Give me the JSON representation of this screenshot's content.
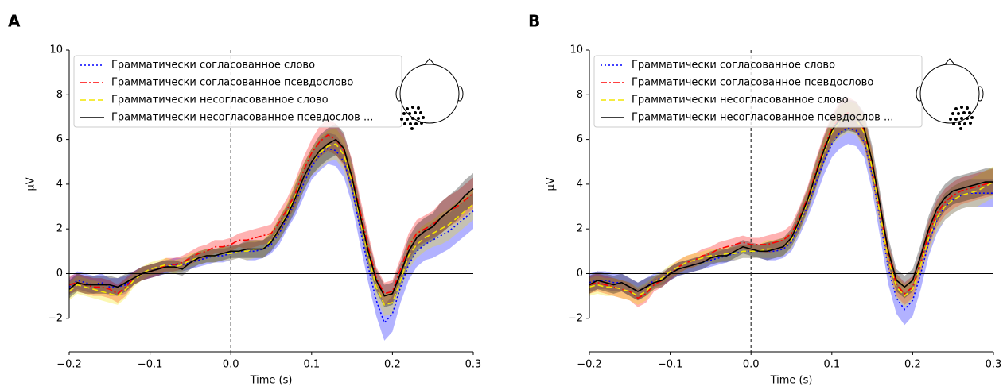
{
  "chart_data": [
    {
      "type": "line",
      "panel_label": "A",
      "x_label": "Time (s)",
      "y_label": "µV",
      "xlim": [
        -0.2,
        0.3
      ],
      "ylim": [
        -3.5,
        10
      ],
      "xticks": [
        {
          "value": -0.2,
          "label": "−0.2"
        },
        {
          "value": -0.1,
          "label": "−0.1"
        },
        {
          "value": 0,
          "label": "0.0"
        },
        {
          "value": 0.1,
          "label": "0.1"
        },
        {
          "value": 0.2,
          "label": "0.2"
        },
        {
          "value": 0.3,
          "label": "0.3"
        }
      ],
      "yticks": [
        {
          "value": -2,
          "label": "−2"
        },
        0,
        2,
        4,
        6,
        8,
        10
      ],
      "hline": 0,
      "vline": 0,
      "legend": "upper left",
      "x": [
        -0.2,
        -0.19,
        -0.18,
        -0.17,
        -0.16,
        -0.15,
        -0.14,
        -0.13,
        -0.12,
        -0.11,
        -0.1,
        -0.09,
        -0.08,
        -0.07,
        -0.06,
        -0.05,
        -0.04,
        -0.03,
        -0.02,
        -0.01,
        0,
        0.01,
        0.02,
        0.03,
        0.04,
        0.05,
        0.06,
        0.07,
        0.08,
        0.09,
        0.1,
        0.11,
        0.12,
        0.13,
        0.14,
        0.15,
        0.16,
        0.17,
        0.18,
        0.19,
        0.2,
        0.21,
        0.22,
        0.23,
        0.24,
        0.25,
        0.26,
        0.27,
        0.28,
        0.29,
        0.3
      ],
      "series": [
        {
          "name": "Грамматически согласованное слово",
          "color": "#0000ff",
          "linestyle": "dotted",
          "values": [
            -0.6,
            -0.3,
            -0.4,
            -0.5,
            -0.4,
            -0.6,
            -0.6,
            -0.5,
            -0.2,
            0.0,
            0.1,
            0.2,
            0.3,
            0.4,
            0.4,
            0.5,
            0.6,
            0.7,
            0.8,
            0.8,
            0.9,
            1.0,
            1.0,
            1.0,
            1.1,
            1.3,
            1.8,
            2.5,
            3.2,
            4.0,
            4.8,
            5.3,
            5.6,
            5.5,
            5.0,
            3.8,
            2.0,
            0.3,
            -1.2,
            -2.2,
            -1.8,
            -0.6,
            0.4,
            1.0,
            1.3,
            1.5,
            1.7,
            1.9,
            2.2,
            2.5,
            2.8
          ],
          "error": [
            0.4,
            0.4,
            0.4,
            0.4,
            0.4,
            0.4,
            0.4,
            0.4,
            0.3,
            0.3,
            0.3,
            0.3,
            0.3,
            0.3,
            0.3,
            0.3,
            0.3,
            0.3,
            0.3,
            0.3,
            0.3,
            0.3,
            0.4,
            0.4,
            0.4,
            0.4,
            0.5,
            0.5,
            0.6,
            0.6,
            0.6,
            0.7,
            0.7,
            0.7,
            0.7,
            0.7,
            0.7,
            0.7,
            0.7,
            0.8,
            0.8,
            0.7,
            0.7,
            0.7,
            0.7,
            0.8,
            0.8,
            0.8,
            0.8,
            0.8,
            0.8
          ]
        },
        {
          "name": "Грамматически согласованное псевдослово",
          "color": "#ff0000",
          "linestyle": "dashdot",
          "values": [
            -0.5,
            -0.4,
            -0.5,
            -0.6,
            -0.6,
            -0.7,
            -0.9,
            -0.6,
            -0.2,
            0.0,
            0.1,
            0.2,
            0.4,
            0.4,
            0.5,
            0.7,
            0.9,
            1.0,
            1.2,
            1.2,
            1.3,
            1.5,
            1.5,
            1.6,
            1.7,
            1.8,
            2.3,
            2.9,
            3.6,
            4.6,
            5.4,
            5.9,
            6.2,
            6.0,
            5.5,
            4.4,
            2.8,
            1.2,
            -0.2,
            -0.9,
            -0.8,
            0.2,
            1.2,
            1.8,
            2.0,
            2.2,
            2.5,
            2.8,
            3.0,
            3.3,
            3.6
          ],
          "error": [
            0.4,
            0.4,
            0.4,
            0.4,
            0.4,
            0.4,
            0.4,
            0.4,
            0.3,
            0.3,
            0.3,
            0.3,
            0.3,
            0.3,
            0.3,
            0.3,
            0.3,
            0.3,
            0.3,
            0.3,
            0.3,
            0.3,
            0.4,
            0.4,
            0.4,
            0.4,
            0.5,
            0.5,
            0.6,
            0.6,
            0.6,
            0.7,
            0.7,
            0.7,
            0.7,
            0.7,
            0.6,
            0.6,
            0.5,
            0.5,
            0.5,
            0.5,
            0.6,
            0.6,
            0.6,
            0.6,
            0.7,
            0.7,
            0.7,
            0.7,
            0.7
          ]
        },
        {
          "name": "Грамматически несогласованное слово",
          "color": "#f2e600",
          "linestyle": "dashed",
          "values": [
            -0.8,
            -0.5,
            -0.6,
            -0.7,
            -0.8,
            -0.9,
            -1.0,
            -0.7,
            -0.3,
            0.0,
            0.2,
            0.3,
            0.4,
            0.3,
            0.4,
            0.6,
            0.7,
            0.8,
            0.8,
            0.9,
            0.9,
            1.0,
            1.0,
            1.1,
            1.1,
            1.5,
            2.0,
            2.7,
            3.5,
            4.3,
            5.0,
            5.4,
            5.7,
            5.8,
            5.3,
            4.1,
            2.4,
            0.8,
            -0.6,
            -1.4,
            -1.3,
            -0.3,
            0.8,
            1.3,
            1.6,
            1.8,
            2.0,
            2.2,
            2.5,
            2.8,
            3.1
          ],
          "error": [
            0.4,
            0.4,
            0.4,
            0.4,
            0.4,
            0.4,
            0.4,
            0.4,
            0.3,
            0.3,
            0.3,
            0.3,
            0.3,
            0.3,
            0.3,
            0.3,
            0.3,
            0.3,
            0.3,
            0.3,
            0.3,
            0.3,
            0.4,
            0.4,
            0.4,
            0.4,
            0.5,
            0.5,
            0.6,
            0.6,
            0.6,
            0.7,
            0.7,
            0.7,
            0.7,
            0.7,
            0.6,
            0.6,
            0.5,
            0.5,
            0.5,
            0.5,
            0.6,
            0.6,
            0.6,
            0.6,
            0.7,
            0.7,
            0.7,
            0.7,
            0.7
          ]
        },
        {
          "name": "Грамматически несогласованное псевдослов ...",
          "color": "#000000",
          "linestyle": "solid",
          "values": [
            -0.7,
            -0.4,
            -0.5,
            -0.5,
            -0.5,
            -0.5,
            -0.6,
            -0.4,
            -0.2,
            0.0,
            0.1,
            0.2,
            0.3,
            0.3,
            0.2,
            0.5,
            0.7,
            0.8,
            0.8,
            0.9,
            1.0,
            1.0,
            1.1,
            1.1,
            1.1,
            1.4,
            2.0,
            2.6,
            3.4,
            4.3,
            5.0,
            5.5,
            5.8,
            6.0,
            5.6,
            4.3,
            2.6,
            1.0,
            -0.3,
            -1.0,
            -0.9,
            0.0,
            1.0,
            1.6,
            1.9,
            2.1,
            2.5,
            2.8,
            3.1,
            3.5,
            3.8
          ],
          "error": [
            0.4,
            0.4,
            0.4,
            0.4,
            0.4,
            0.4,
            0.4,
            0.4,
            0.3,
            0.3,
            0.3,
            0.3,
            0.3,
            0.3,
            0.3,
            0.3,
            0.3,
            0.3,
            0.3,
            0.3,
            0.3,
            0.3,
            0.4,
            0.4,
            0.4,
            0.4,
            0.5,
            0.5,
            0.6,
            0.6,
            0.6,
            0.7,
            0.7,
            0.7,
            0.7,
            0.7,
            0.6,
            0.6,
            0.5,
            0.5,
            0.5,
            0.5,
            0.6,
            0.6,
            0.6,
            0.6,
            0.7,
            0.7,
            0.7,
            0.7,
            0.7
          ]
        }
      ]
    },
    {
      "type": "line",
      "panel_label": "B",
      "x_label": "Time (s)",
      "y_label": "µV",
      "xlim": [
        -0.2,
        0.3
      ],
      "ylim": [
        -3.5,
        10
      ],
      "xticks": [
        {
          "value": -0.2,
          "label": "−0.2"
        },
        {
          "value": -0.1,
          "label": "−0.1"
        },
        {
          "value": 0,
          "label": "0.0"
        },
        {
          "value": 0.1,
          "label": "0.1"
        },
        {
          "value": 0.2,
          "label": "0.2"
        },
        {
          "value": 0.3,
          "label": "0.3"
        }
      ],
      "yticks": [
        {
          "value": -2,
          "label": "−2"
        },
        0,
        2,
        4,
        6,
        8,
        10
      ],
      "hline": 0,
      "vline": 0,
      "legend": "upper left",
      "x": [
        -0.2,
        -0.19,
        -0.18,
        -0.17,
        -0.16,
        -0.15,
        -0.14,
        -0.13,
        -0.12,
        -0.11,
        -0.1,
        -0.09,
        -0.08,
        -0.07,
        -0.06,
        -0.05,
        -0.04,
        -0.03,
        -0.02,
        -0.01,
        0,
        0.01,
        0.02,
        0.03,
        0.04,
        0.05,
        0.06,
        0.07,
        0.08,
        0.09,
        0.1,
        0.11,
        0.12,
        0.13,
        0.14,
        0.15,
        0.16,
        0.17,
        0.18,
        0.19,
        0.2,
        0.21,
        0.22,
        0.23,
        0.24,
        0.25,
        0.26,
        0.27,
        0.28,
        0.29,
        0.3
      ],
      "series": [
        {
          "name": "Грамматически согласованное слово",
          "color": "#0000ff",
          "linestyle": "dotted",
          "values": [
            -0.4,
            -0.3,
            -0.3,
            -0.4,
            -0.4,
            -0.6,
            -0.8,
            -0.6,
            -0.3,
            -0.2,
            0.0,
            0.2,
            0.3,
            0.4,
            0.5,
            0.6,
            0.7,
            0.8,
            0.9,
            1.0,
            1.0,
            1.0,
            1.0,
            1.0,
            1.1,
            1.4,
            2.2,
            3.0,
            4.0,
            5.0,
            5.8,
            6.3,
            6.5,
            6.4,
            5.9,
            4.4,
            2.3,
            0.2,
            -1.1,
            -1.6,
            -1.2,
            0.0,
            1.4,
            2.4,
            3.0,
            3.3,
            3.5,
            3.6,
            3.6,
            3.6,
            3.6
          ],
          "error": [
            0.4,
            0.4,
            0.4,
            0.4,
            0.4,
            0.4,
            0.4,
            0.4,
            0.3,
            0.3,
            0.3,
            0.3,
            0.3,
            0.3,
            0.3,
            0.3,
            0.3,
            0.3,
            0.3,
            0.3,
            0.3,
            0.3,
            0.4,
            0.4,
            0.4,
            0.4,
            0.5,
            0.5,
            0.6,
            0.6,
            0.6,
            0.7,
            0.7,
            0.7,
            0.7,
            0.7,
            0.7,
            0.7,
            0.7,
            0.7,
            0.7,
            0.7,
            0.6,
            0.6,
            0.6,
            0.6,
            0.6,
            0.6,
            0.6,
            0.6,
            0.6
          ]
        },
        {
          "name": "Грамматически согласованное псевдослово",
          "color": "#ff0000",
          "linestyle": "dashdot",
          "values": [
            -0.5,
            -0.4,
            -0.5,
            -0.6,
            -0.7,
            -0.8,
            -1.1,
            -0.9,
            -0.5,
            -0.3,
            0.0,
            0.3,
            0.5,
            0.6,
            0.8,
            0.9,
            1.1,
            1.2,
            1.3,
            1.4,
            1.3,
            1.3,
            1.3,
            1.4,
            1.5,
            1.8,
            2.5,
            3.4,
            4.5,
            5.6,
            6.5,
            7.0,
            7.2,
            7.0,
            6.4,
            4.8,
            2.8,
            0.8,
            -0.5,
            -0.9,
            -0.6,
            0.5,
            1.8,
            2.7,
            3.2,
            3.5,
            3.7,
            3.8,
            3.9,
            4.0,
            4.1
          ],
          "error": [
            0.4,
            0.4,
            0.4,
            0.4,
            0.4,
            0.4,
            0.4,
            0.4,
            0.3,
            0.3,
            0.3,
            0.3,
            0.3,
            0.3,
            0.3,
            0.3,
            0.3,
            0.3,
            0.3,
            0.3,
            0.3,
            0.3,
            0.4,
            0.4,
            0.4,
            0.4,
            0.5,
            0.5,
            0.6,
            0.6,
            0.6,
            0.7,
            0.7,
            0.7,
            0.7,
            0.7,
            0.6,
            0.6,
            0.5,
            0.5,
            0.5,
            0.5,
            0.6,
            0.6,
            0.6,
            0.6,
            0.6,
            0.6,
            0.6,
            0.6,
            0.6
          ]
        },
        {
          "name": "Грамматически несогласованное слово",
          "color": "#f2e600",
          "linestyle": "dashed",
          "values": [
            -0.6,
            -0.5,
            -0.6,
            -0.6,
            -0.7,
            -0.8,
            -1.0,
            -0.8,
            -0.4,
            -0.2,
            0.1,
            0.3,
            0.5,
            0.6,
            0.7,
            0.8,
            0.8,
            0.9,
            0.9,
            1.0,
            1.0,
            1.0,
            1.1,
            1.1,
            1.2,
            1.5,
            2.3,
            3.2,
            4.3,
            5.4,
            6.3,
            6.8,
            7.0,
            6.9,
            6.3,
            4.7,
            2.6,
            0.6,
            -0.6,
            -1.0,
            -0.7,
            0.4,
            1.6,
            2.5,
            3.0,
            3.3,
            3.5,
            3.6,
            3.7,
            3.9,
            4.1
          ],
          "error": [
            0.4,
            0.4,
            0.4,
            0.4,
            0.4,
            0.4,
            0.4,
            0.4,
            0.3,
            0.3,
            0.3,
            0.3,
            0.3,
            0.3,
            0.3,
            0.3,
            0.3,
            0.3,
            0.3,
            0.3,
            0.3,
            0.3,
            0.4,
            0.4,
            0.4,
            0.4,
            0.5,
            0.5,
            0.6,
            0.6,
            0.6,
            0.7,
            0.7,
            0.7,
            0.7,
            0.7,
            0.6,
            0.6,
            0.5,
            0.5,
            0.5,
            0.5,
            0.6,
            0.6,
            0.6,
            0.6,
            0.6,
            0.6,
            0.7,
            0.7,
            0.7
          ]
        },
        {
          "name": "Грамматически несогласованное псевдослов ...",
          "color": "#000000",
          "linestyle": "solid",
          "values": [
            -0.5,
            -0.3,
            -0.4,
            -0.5,
            -0.4,
            -0.6,
            -0.8,
            -0.6,
            -0.4,
            -0.3,
            0.0,
            0.2,
            0.3,
            0.4,
            0.5,
            0.7,
            0.8,
            0.8,
            1.0,
            1.2,
            1.1,
            1.0,
            1.0,
            1.1,
            1.2,
            1.6,
            2.4,
            3.3,
            4.4,
            5.5,
            6.4,
            6.9,
            7.1,
            7.0,
            6.5,
            5.0,
            3.0,
            1.0,
            -0.3,
            -0.6,
            -0.3,
            0.8,
            2.0,
            2.9,
            3.4,
            3.7,
            3.8,
            3.9,
            4.0,
            4.1,
            4.1
          ],
          "error": [
            0.4,
            0.4,
            0.4,
            0.4,
            0.4,
            0.4,
            0.4,
            0.4,
            0.3,
            0.3,
            0.3,
            0.3,
            0.3,
            0.3,
            0.3,
            0.3,
            0.3,
            0.3,
            0.3,
            0.3,
            0.3,
            0.3,
            0.4,
            0.4,
            0.4,
            0.4,
            0.5,
            0.5,
            0.6,
            0.6,
            0.6,
            0.7,
            0.7,
            0.7,
            0.7,
            0.7,
            0.6,
            0.6,
            0.5,
            0.5,
            0.5,
            0.5,
            0.6,
            0.6,
            0.6,
            0.6,
            0.6,
            0.6,
            0.6,
            0.6,
            0.6
          ]
        }
      ]
    }
  ]
}
